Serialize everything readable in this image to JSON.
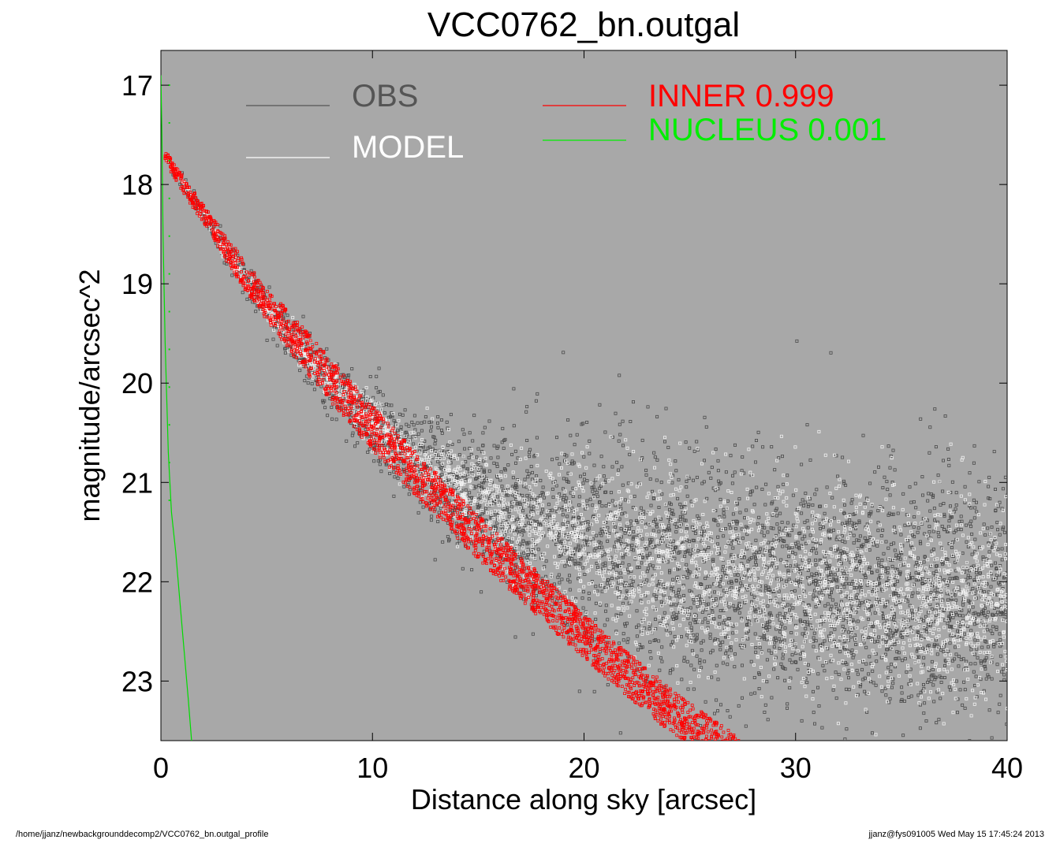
{
  "chart_data": {
    "type": "scatter",
    "title": "VCC0762_bn.outgal",
    "xlabel": "Distance along sky [arcsec]",
    "ylabel": "magnitude/arcsec^2",
    "xlim": [
      0,
      40
    ],
    "ylim": [
      23.6,
      16.65
    ],
    "y_inverted": true,
    "x_ticks": [
      0,
      10,
      20,
      30,
      40
    ],
    "x_tick_labels": [
      "0",
      "10",
      "20",
      "30",
      "40"
    ],
    "y_ticks": [
      17,
      18,
      19,
      20,
      21,
      22,
      23
    ],
    "y_tick_labels": [
      "17",
      "18",
      "19",
      "20",
      "21",
      "22",
      "23"
    ],
    "plot_background": "#a8a8a8",
    "grid": false,
    "legend": [
      {
        "label": "OBS",
        "color": "#555555"
      },
      {
        "label": "MODEL",
        "color": "#ffffff"
      },
      {
        "label": "INNER",
        "value": "0.999",
        "color": "#ff0000"
      },
      {
        "label": "NUCLEUS",
        "value": "0.001",
        "color": "#00ee00"
      }
    ],
    "series": [
      {
        "name": "OBS",
        "kind": "scatter",
        "color": "#4a4a4a",
        "x": [
          0.3,
          1.0,
          2.0,
          3.0,
          4.0,
          5.0,
          6.0,
          7.0,
          8.0,
          9.0,
          10.0,
          11.0,
          12.0,
          13.0,
          14.0,
          15.0,
          16.0,
          18.0,
          20.0,
          22.0,
          25.0,
          28.0,
          30.0,
          33.0,
          36.0,
          40.0
        ],
        "y": [
          17.75,
          17.95,
          18.3,
          18.65,
          18.95,
          19.25,
          19.5,
          19.75,
          20.0,
          20.2,
          20.4,
          20.6,
          20.75,
          20.9,
          21.05,
          21.15,
          21.25,
          21.45,
          21.6,
          21.75,
          21.9,
          22.0,
          22.05,
          22.1,
          22.15,
          22.2
        ],
        "scatter_magnitude": 0.55
      },
      {
        "name": "MODEL",
        "kind": "scatter",
        "color": "#f2f2f2",
        "x": [
          0.3,
          1.0,
          2.0,
          3.0,
          4.0,
          5.0,
          6.0,
          7.0,
          8.0,
          9.0,
          10.0,
          11.0,
          12.0,
          13.0,
          14.0,
          15.0,
          16.0,
          18.0,
          20.0,
          22.0,
          25.0,
          28.0,
          30.0,
          33.0,
          36.0,
          40.0
        ],
        "y": [
          17.75,
          17.95,
          18.3,
          18.65,
          18.95,
          19.25,
          19.5,
          19.75,
          20.0,
          20.2,
          20.4,
          20.6,
          20.75,
          20.9,
          21.05,
          21.15,
          21.25,
          21.45,
          21.6,
          21.75,
          21.9,
          22.0,
          22.05,
          22.1,
          22.15,
          22.2
        ],
        "scatter_magnitude": 0.45
      },
      {
        "name": "INNER",
        "kind": "scatter",
        "color": "#ff0000",
        "x": [
          0.3,
          1.0,
          2.0,
          3.0,
          4.0,
          5.0,
          6.0,
          7.0,
          8.0,
          9.0,
          10.0,
          11.0,
          12.0,
          14.0,
          16.0,
          18.0,
          20.0,
          22.0,
          24.0,
          26.0,
          27.5
        ],
        "y": [
          17.75,
          17.98,
          18.3,
          18.62,
          18.92,
          19.2,
          19.46,
          19.72,
          19.97,
          20.21,
          20.45,
          20.68,
          20.9,
          21.34,
          21.76,
          22.16,
          22.55,
          22.92,
          23.28,
          23.6,
          23.8
        ],
        "band_halfwidth": 0.22
      },
      {
        "name": "NUCLEUS",
        "kind": "line",
        "color": "#00dd00",
        "x": [
          0.0,
          0.05,
          0.1,
          0.2,
          0.35,
          0.5,
          0.7,
          0.9,
          1.1,
          1.3,
          1.45
        ],
        "y": [
          16.9,
          17.5,
          18.5,
          19.6,
          20.7,
          21.3,
          21.7,
          22.2,
          22.7,
          23.2,
          23.6
        ]
      }
    ]
  },
  "footer": {
    "left": "/home/jjanz/newbackgrounddecomp2/VCC0762_bn.outgal_profile",
    "right": "jjanz@fys091005  Wed May 15 17:45:24 2013"
  }
}
